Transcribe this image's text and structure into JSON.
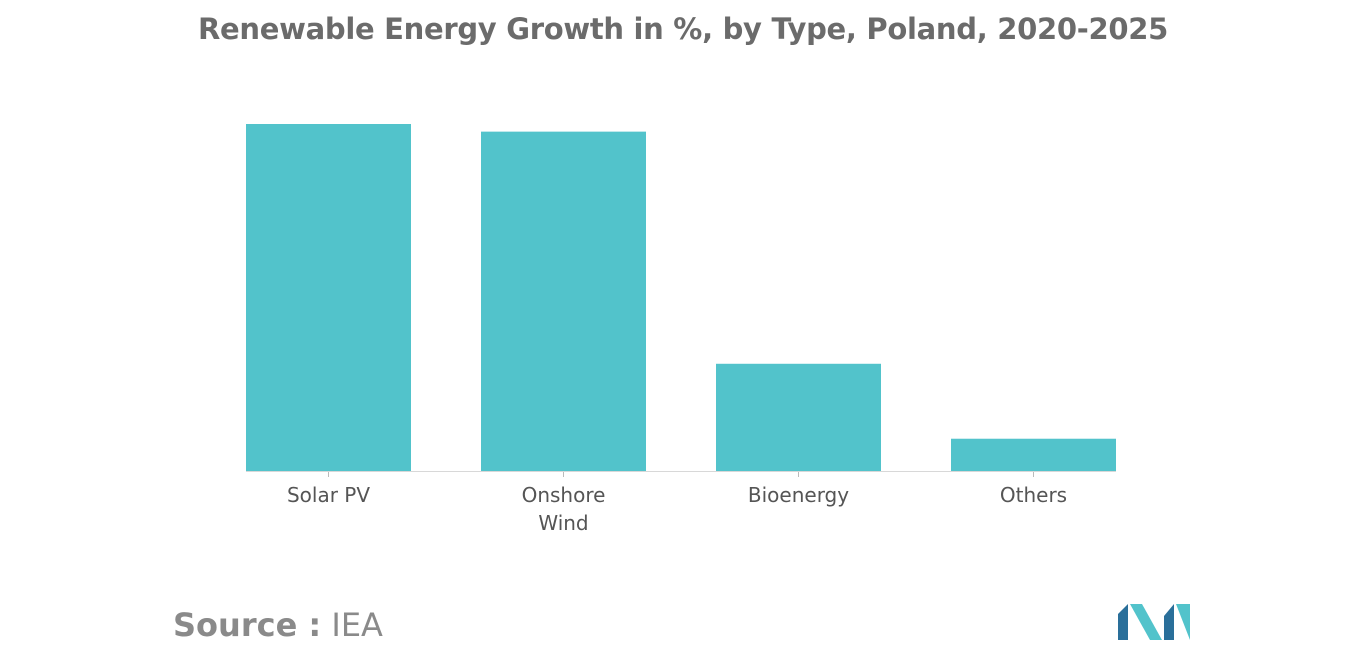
{
  "chart_data": {
    "type": "bar",
    "title": "Renewable Energy Growth in %, by Type, Poland, 2020-2025",
    "categories": [
      [
        "Solar PV"
      ],
      [
        "Onshore",
        "Wind"
      ],
      [
        "Bioenergy"
      ],
      [
        "Others"
      ]
    ],
    "values": [
      100,
      97.8,
      30.9,
      9.3
    ],
    "ylim": [
      0,
      100
    ],
    "xlabel": "",
    "ylabel": "",
    "grid": false,
    "legend": "none",
    "bar_color": "#52c3cb"
  },
  "source": {
    "prefix": "Source :",
    "name": "IEA"
  },
  "logo": {
    "colors": [
      "#2a6f9a",
      "#52c3cb"
    ]
  }
}
